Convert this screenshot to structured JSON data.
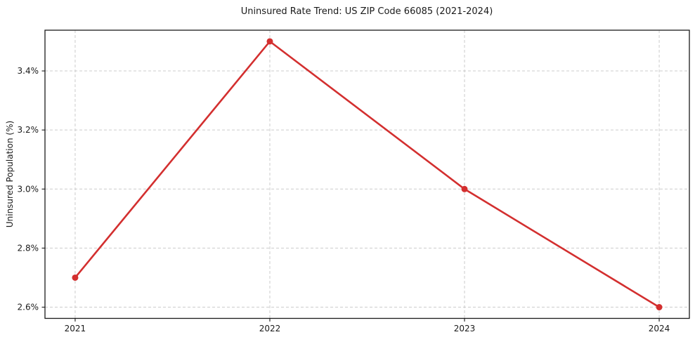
{
  "figure": {
    "background": "#ffffff"
  },
  "chart_data": {
    "type": "line",
    "title": "Uninsured Rate Trend: US ZIP Code 66085 (2021-2024)",
    "xlabel": "",
    "ylabel": "Uninsured Population (%)",
    "x": [
      2021,
      2022,
      2023,
      2024
    ],
    "values": [
      2.7,
      3.5,
      3.0,
      2.6
    ],
    "x_tick_labels": [
      "2021",
      "2022",
      "2023",
      "2024"
    ],
    "y_ticks": [
      2.6,
      2.8,
      3.0,
      3.2,
      3.4
    ],
    "y_tick_labels": [
      "2.6%",
      "2.8%",
      "3.0%",
      "3.2%",
      "3.4%"
    ],
    "xlim": [
      2020.845,
      2024.155
    ],
    "ylim": [
      2.562,
      3.538
    ],
    "grid": true,
    "grid_style": "dashed",
    "legend_position": "none",
    "colors": {
      "line": "#d32f2f",
      "marker": "#d32f2f",
      "grid": "#cccccc",
      "axis": "#1a1a1a",
      "text": "#1a1a1a"
    }
  }
}
